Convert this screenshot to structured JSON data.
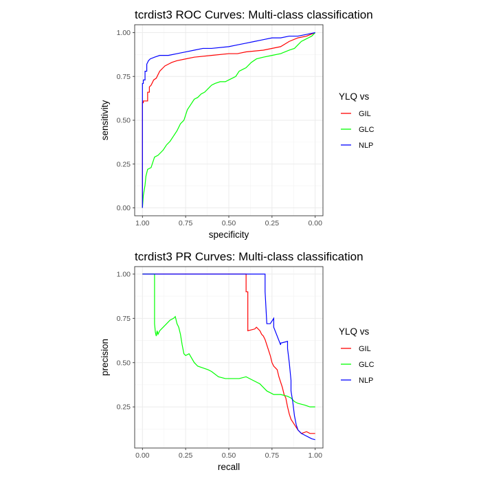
{
  "chart_data": [
    {
      "type": "line",
      "title": "tcrdist3 ROC Curves: Multi-class classification",
      "xlabel": "specificity",
      "ylabel": "sensitivity",
      "x_reversed": true,
      "xlim": [
        1.0,
        0.0
      ],
      "ylim": [
        0.0,
        1.0
      ],
      "xticks": [
        "1.00",
        "0.75",
        "0.50",
        "0.25",
        "0.00"
      ],
      "yticks": [
        "0.00",
        "0.25",
        "0.50",
        "0.75",
        "1.00"
      ],
      "grid": true,
      "legend": {
        "title": "YLQ vs",
        "position": "right"
      },
      "series": [
        {
          "name": "GIL",
          "color": "#ff0000",
          "x": [
            1.0,
            1.0,
            0.995,
            0.995,
            0.97,
            0.97,
            0.96,
            0.96,
            0.95,
            0.945,
            0.94,
            0.935,
            0.92,
            0.91,
            0.9,
            0.89,
            0.88,
            0.87,
            0.85,
            0.83,
            0.8,
            0.75,
            0.7,
            0.6,
            0.5,
            0.45,
            0.4,
            0.3,
            0.2,
            0.15,
            0.1,
            0.05,
            0.0
          ],
          "y": [
            0.0,
            0.6,
            0.6,
            0.61,
            0.61,
            0.66,
            0.66,
            0.69,
            0.7,
            0.71,
            0.72,
            0.73,
            0.74,
            0.76,
            0.78,
            0.79,
            0.8,
            0.81,
            0.82,
            0.83,
            0.84,
            0.85,
            0.86,
            0.87,
            0.88,
            0.88,
            0.89,
            0.9,
            0.92,
            0.95,
            0.97,
            0.98,
            1.0
          ]
        },
        {
          "name": "GLC",
          "color": "#00ff00",
          "x": [
            1.0,
            0.995,
            0.99,
            0.985,
            0.98,
            0.97,
            0.95,
            0.93,
            0.91,
            0.88,
            0.86,
            0.84,
            0.82,
            0.8,
            0.78,
            0.76,
            0.74,
            0.72,
            0.7,
            0.68,
            0.66,
            0.64,
            0.62,
            0.6,
            0.58,
            0.55,
            0.52,
            0.5,
            0.48,
            0.46,
            0.44,
            0.42,
            0.4,
            0.37,
            0.34,
            0.3,
            0.25,
            0.2,
            0.15,
            0.12,
            0.1,
            0.08,
            0.06,
            0.04,
            0.02,
            0.0
          ],
          "y": [
            0.0,
            0.07,
            0.1,
            0.13,
            0.18,
            0.22,
            0.23,
            0.29,
            0.3,
            0.33,
            0.36,
            0.38,
            0.41,
            0.44,
            0.48,
            0.5,
            0.56,
            0.59,
            0.62,
            0.63,
            0.65,
            0.66,
            0.68,
            0.7,
            0.71,
            0.72,
            0.72,
            0.73,
            0.74,
            0.75,
            0.78,
            0.79,
            0.8,
            0.83,
            0.85,
            0.86,
            0.87,
            0.88,
            0.9,
            0.91,
            0.93,
            0.95,
            0.96,
            0.97,
            0.98,
            1.0
          ]
        },
        {
          "name": "NLP",
          "color": "#0000ff",
          "x": [
            1.0,
            1.0,
            0.995,
            0.995,
            0.985,
            0.985,
            0.975,
            0.975,
            0.965,
            0.955,
            0.93,
            0.9,
            0.85,
            0.8,
            0.75,
            0.7,
            0.65,
            0.6,
            0.5,
            0.45,
            0.4,
            0.35,
            0.3,
            0.25,
            0.2,
            0.15,
            0.1,
            0.05,
            0.0
          ],
          "y": [
            0.0,
            0.71,
            0.71,
            0.73,
            0.73,
            0.78,
            0.78,
            0.82,
            0.84,
            0.85,
            0.86,
            0.87,
            0.87,
            0.88,
            0.89,
            0.9,
            0.91,
            0.91,
            0.92,
            0.93,
            0.94,
            0.95,
            0.96,
            0.97,
            0.97,
            0.98,
            0.98,
            0.99,
            1.0
          ]
        }
      ]
    },
    {
      "type": "line",
      "title": "tcrdist3 PR Curves: Multi-class classification",
      "xlabel": "recall",
      "ylabel": "precision",
      "xlim": [
        0.0,
        1.0
      ],
      "ylim": [
        0.06,
        1.0
      ],
      "xticks": [
        "0.00",
        "0.25",
        "0.50",
        "0.75",
        "1.00"
      ],
      "yticks": [
        "0.25",
        "0.50",
        "0.75",
        "1.00"
      ],
      "grid": true,
      "legend": {
        "title": "YLQ vs",
        "position": "right"
      },
      "series": [
        {
          "name": "GIL",
          "color": "#ff0000",
          "x": [
            0.0,
            0.6,
            0.6,
            0.61,
            0.61,
            0.65,
            0.66,
            0.68,
            0.69,
            0.7,
            0.71,
            0.72,
            0.73,
            0.74,
            0.75,
            0.76,
            0.77,
            0.78,
            0.79,
            0.8,
            0.81,
            0.82,
            0.83,
            0.84,
            0.85,
            0.86,
            0.88,
            0.9,
            0.92,
            0.95,
            0.97,
            1.0
          ],
          "y": [
            1.0,
            1.0,
            0.9,
            0.9,
            0.68,
            0.69,
            0.7,
            0.68,
            0.66,
            0.65,
            0.63,
            0.6,
            0.57,
            0.54,
            0.5,
            0.48,
            0.47,
            0.46,
            0.42,
            0.39,
            0.36,
            0.32,
            0.3,
            0.25,
            0.21,
            0.18,
            0.15,
            0.12,
            0.1,
            0.11,
            0.1,
            0.1
          ]
        },
        {
          "name": "GLC",
          "color": "#00ff00",
          "x": [
            0.0,
            0.07,
            0.07,
            0.075,
            0.08,
            0.085,
            0.09,
            0.1,
            0.12,
            0.14,
            0.16,
            0.18,
            0.19,
            0.2,
            0.21,
            0.22,
            0.23,
            0.24,
            0.25,
            0.27,
            0.3,
            0.32,
            0.35,
            0.38,
            0.4,
            0.44,
            0.48,
            0.52,
            0.56,
            0.6,
            0.64,
            0.68,
            0.72,
            0.76,
            0.8,
            0.84,
            0.86,
            0.88,
            0.9,
            0.94,
            0.97,
            1.0
          ],
          "y": [
            1.0,
            1.0,
            0.72,
            0.67,
            0.65,
            0.68,
            0.66,
            0.68,
            0.7,
            0.72,
            0.74,
            0.75,
            0.76,
            0.72,
            0.7,
            0.66,
            0.6,
            0.55,
            0.54,
            0.55,
            0.5,
            0.48,
            0.47,
            0.46,
            0.45,
            0.42,
            0.41,
            0.41,
            0.41,
            0.42,
            0.4,
            0.38,
            0.34,
            0.32,
            0.32,
            0.31,
            0.3,
            0.28,
            0.27,
            0.26,
            0.25,
            0.25
          ]
        },
        {
          "name": "NLP",
          "color": "#0000ff",
          "x": [
            0.0,
            0.71,
            0.71,
            0.72,
            0.74,
            0.76,
            0.76,
            0.8,
            0.8,
            0.84,
            0.84,
            0.85,
            0.86,
            0.86,
            0.87,
            0.88,
            0.89,
            0.9,
            0.92,
            0.94,
            0.96,
            0.98,
            1.0
          ],
          "y": [
            1.0,
            1.0,
            0.9,
            0.72,
            0.72,
            0.75,
            0.7,
            0.6,
            0.61,
            0.62,
            0.58,
            0.5,
            0.4,
            0.34,
            0.28,
            0.2,
            0.15,
            0.12,
            0.1,
            0.09,
            0.08,
            0.07,
            0.065
          ]
        }
      ]
    }
  ]
}
